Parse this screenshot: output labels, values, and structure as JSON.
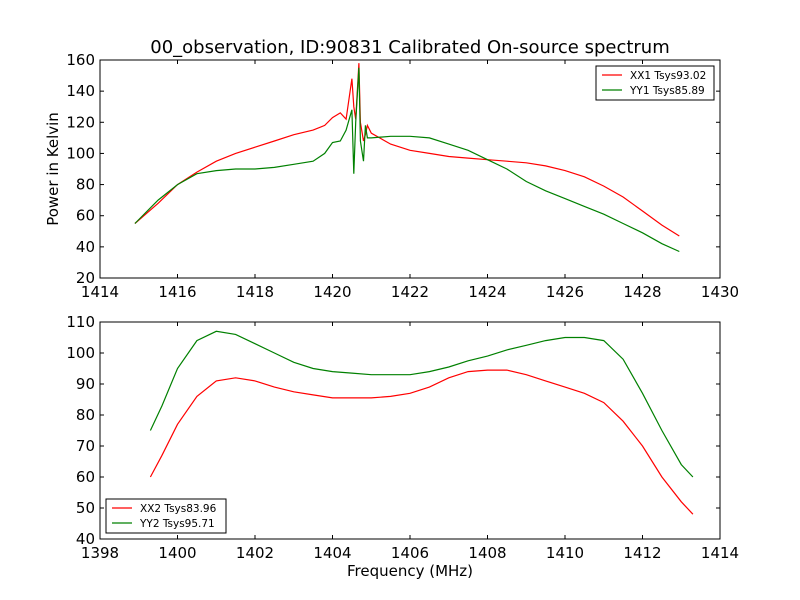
{
  "chart_data": [
    {
      "type": "line",
      "title": "00_observation, ID:90831 Calibrated On-source spectrum",
      "xlabel": "",
      "ylabel": "Power in Kelvin",
      "xlim": [
        1414,
        1430
      ],
      "ylim": [
        20,
        160
      ],
      "xticks": [
        "1414",
        "1416",
        "1418",
        "1420",
        "1422",
        "1424",
        "1426",
        "1428",
        "1430"
      ],
      "yticks": [
        "20",
        "40",
        "60",
        "80",
        "100",
        "120",
        "140",
        "160"
      ],
      "legend_position": "upper right",
      "series": [
        {
          "name": "XX1 Tsys93.02",
          "color": "#ff0000",
          "x": [
            1414.9,
            1415.5,
            1416.0,
            1416.5,
            1417.0,
            1417.5,
            1418.0,
            1418.5,
            1419.0,
            1419.5,
            1419.8,
            1420.0,
            1420.2,
            1420.35,
            1420.5,
            1420.55,
            1420.6,
            1420.68,
            1420.72,
            1420.8,
            1420.85,
            1420.9,
            1421.0,
            1421.5,
            1422.0,
            1422.5,
            1423.0,
            1423.5,
            1424.0,
            1424.5,
            1425.0,
            1425.5,
            1426.0,
            1426.5,
            1427.0,
            1427.5,
            1428.0,
            1428.5,
            1428.95
          ],
          "y": [
            55,
            68,
            80,
            88,
            95,
            100,
            104,
            108,
            112,
            115,
            118,
            123,
            126,
            122,
            148,
            130,
            122,
            158,
            120,
            108,
            112,
            118,
            113,
            106,
            102,
            100,
            98,
            97,
            96,
            95,
            94,
            92,
            89,
            85,
            79,
            72,
            63,
            54,
            47
          ]
        },
        {
          "name": "YY1 Tsys85.89",
          "color": "#008000",
          "x": [
            1414.9,
            1415.5,
            1416.0,
            1416.5,
            1417.0,
            1417.5,
            1418.0,
            1418.5,
            1419.0,
            1419.5,
            1419.8,
            1420.0,
            1420.2,
            1420.35,
            1420.5,
            1420.55,
            1420.6,
            1420.68,
            1420.72,
            1420.8,
            1420.85,
            1420.9,
            1421.0,
            1421.5,
            1422.0,
            1422.5,
            1423.0,
            1423.5,
            1424.0,
            1424.5,
            1425.0,
            1425.5,
            1426.0,
            1426.5,
            1427.0,
            1427.5,
            1428.0,
            1428.5,
            1428.95
          ],
          "y": [
            55,
            70,
            80,
            87,
            89,
            90,
            90,
            91,
            93,
            95,
            100,
            107,
            108,
            115,
            128,
            87,
            120,
            155,
            108,
            95,
            118,
            110,
            110,
            111,
            111,
            110,
            106,
            102,
            96,
            90,
            82,
            76,
            71,
            66,
            61,
            55,
            49,
            42,
            37
          ]
        }
      ]
    },
    {
      "type": "line",
      "title": "",
      "xlabel": "Frequency (MHz)",
      "ylabel": "",
      "xlim": [
        1398,
        1414
      ],
      "ylim": [
        40,
        110
      ],
      "xticks": [
        "1398",
        "1400",
        "1402",
        "1404",
        "1406",
        "1408",
        "1410",
        "1412",
        "1414"
      ],
      "yticks": [
        "40",
        "50",
        "60",
        "70",
        "80",
        "90",
        "100",
        "110"
      ],
      "legend_position": "lower left",
      "series": [
        {
          "name": "XX2 Tsys83.96",
          "color": "#ff0000",
          "x": [
            1399.3,
            1399.6,
            1400.0,
            1400.5,
            1401.0,
            1401.5,
            1402.0,
            1402.5,
            1403.0,
            1403.5,
            1404.0,
            1404.5,
            1405.0,
            1405.5,
            1406.0,
            1406.5,
            1407.0,
            1407.5,
            1408.0,
            1408.5,
            1409.0,
            1409.5,
            1410.0,
            1410.5,
            1411.0,
            1411.5,
            1412.0,
            1412.5,
            1413.0,
            1413.3
          ],
          "y": [
            60,
            67,
            77,
            86,
            91,
            92,
            91,
            89,
            87.5,
            86.5,
            85.5,
            85.5,
            85.5,
            86,
            87,
            89,
            92,
            94,
            94.5,
            94.5,
            93,
            91,
            89,
            87,
            84,
            78,
            70,
            60,
            52,
            48
          ]
        },
        {
          "name": "YY2 Tsys95.71",
          "color": "#008000",
          "x": [
            1399.3,
            1399.6,
            1400.0,
            1400.5,
            1401.0,
            1401.5,
            1402.0,
            1402.5,
            1403.0,
            1403.5,
            1404.0,
            1404.5,
            1405.0,
            1405.5,
            1406.0,
            1406.5,
            1407.0,
            1407.5,
            1408.0,
            1408.5,
            1409.0,
            1409.5,
            1410.0,
            1410.5,
            1411.0,
            1411.5,
            1412.0,
            1412.5,
            1413.0,
            1413.3
          ],
          "y": [
            75,
            83,
            95,
            104,
            107,
            106,
            103,
            100,
            97,
            95,
            94,
            93.5,
            93,
            93,
            93,
            94,
            95.5,
            97.5,
            99,
            101,
            102.5,
            104,
            105,
            105,
            104,
            98,
            87,
            75,
            64,
            60
          ]
        }
      ]
    }
  ]
}
